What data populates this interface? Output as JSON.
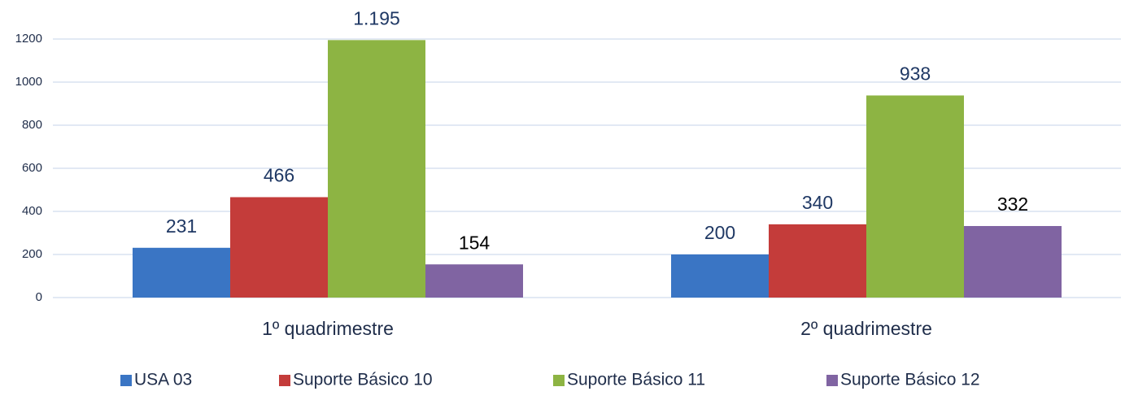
{
  "chart_data": {
    "type": "bar",
    "categories": [
      "1º quadrimestre",
      "2º quadrimestre"
    ],
    "series": [
      {
        "name": "USA 03",
        "color": "#3a75c4",
        "values": [
          231,
          200
        ]
      },
      {
        "name": "Suporte Básico 10",
        "color": "#c43c3a",
        "values": [
          466,
          340
        ]
      },
      {
        "name": "Suporte Básico 11",
        "color": "#8db443",
        "values": [
          1195,
          938
        ],
        "value_labels": [
          "1.195",
          "938"
        ]
      },
      {
        "name": "Suporte Básico 12",
        "color": "#8064a2",
        "values": [
          154,
          332
        ]
      }
    ],
    "ylim": [
      0,
      1200
    ],
    "yticks": [
      0,
      200,
      400,
      600,
      800,
      1000,
      1200
    ],
    "grid": true,
    "legend": "bottom"
  }
}
